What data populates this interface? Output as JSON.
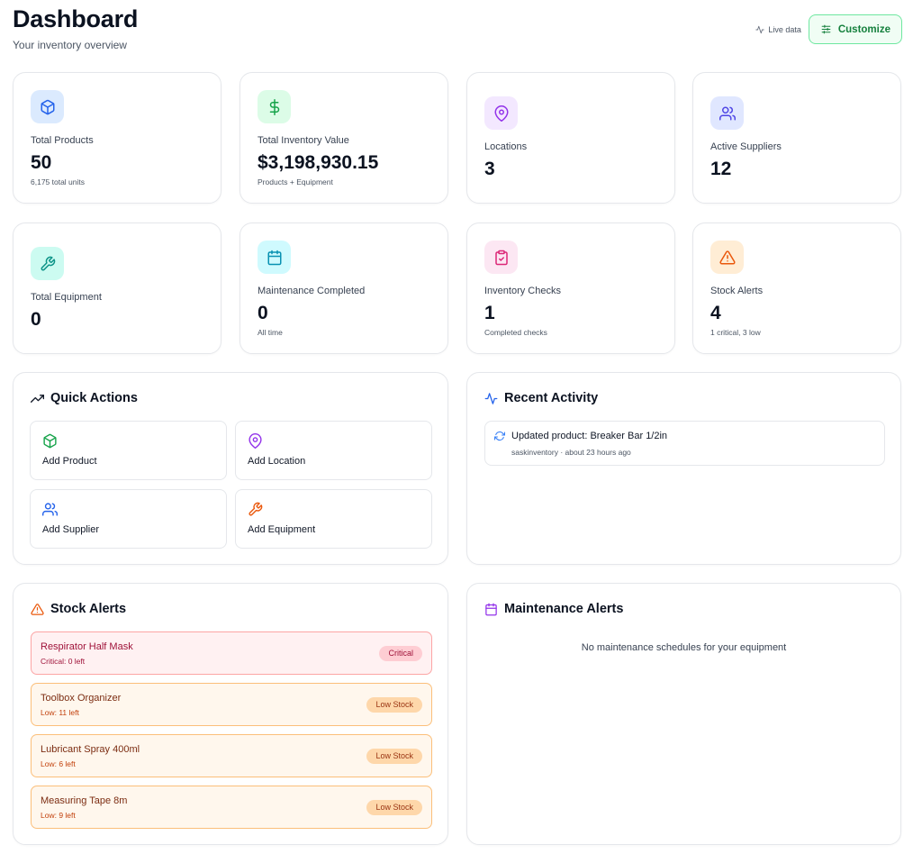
{
  "header": {
    "title": "Dashboard",
    "subtitle": "Your inventory overview",
    "live_label": "Live data",
    "customize_label": "Customize"
  },
  "stats": [
    {
      "label": "Total Products",
      "value": "50",
      "note": "6,175 total units",
      "icon": "package-icon",
      "color": "#2563eb",
      "bg": "#dbeafe"
    },
    {
      "label": "Total Inventory Value",
      "value": "$3,198,930.15",
      "note": "Products + Equipment",
      "icon": "dollar-icon",
      "color": "#16a34a",
      "bg": "#dcfce7"
    },
    {
      "label": "Locations",
      "value": "3",
      "note": "",
      "icon": "map-pin-icon",
      "color": "#9333ea",
      "bg": "#f3e8ff"
    },
    {
      "label": "Active Suppliers",
      "value": "12",
      "note": "",
      "icon": "users-icon",
      "color": "#4f46e5",
      "bg": "#e0e7ff"
    },
    {
      "label": "Total Equipment",
      "value": "0",
      "note": "",
      "icon": "wrench-icon",
      "color": "#0d9488",
      "bg": "#ccfbf1"
    },
    {
      "label": "Maintenance Completed",
      "value": "0",
      "note": "All time",
      "icon": "calendar-icon",
      "color": "#0891b2",
      "bg": "#cffafe"
    },
    {
      "label": "Inventory Checks",
      "value": "1",
      "note": "Completed checks",
      "icon": "clipboard-check-icon",
      "color": "#db2777",
      "bg": "#fce7f3"
    },
    {
      "label": "Stock Alerts",
      "value": "4",
      "note": "1 critical, 3 low",
      "icon": "alert-triangle-icon",
      "color": "#ea580c",
      "bg": "#ffedd5"
    }
  ],
  "quick_actions": {
    "title": "Quick Actions",
    "items": [
      {
        "label": "Add Product",
        "icon": "package-icon",
        "color": "#16a34a"
      },
      {
        "label": "Add Location",
        "icon": "map-pin-icon",
        "color": "#9333ea"
      },
      {
        "label": "Add Supplier",
        "icon": "users-icon",
        "color": "#2563eb"
      },
      {
        "label": "Add Equipment",
        "icon": "wrench-icon",
        "color": "#ea580c"
      }
    ]
  },
  "recent_activity": {
    "title": "Recent Activity",
    "items": [
      {
        "title": "Updated product: Breaker Bar 1/2in",
        "meta": "saskinventory · about 23 hours ago",
        "icon": "refresh-icon"
      }
    ]
  },
  "stock_alerts": {
    "title": "Stock Alerts",
    "items": [
      {
        "name": "Respirator Half Mask",
        "detail": "Critical: 0 left",
        "badge": "Critical",
        "level": "critical"
      },
      {
        "name": "Toolbox Organizer",
        "detail": "Low: 11 left",
        "badge": "Low Stock",
        "level": "low"
      },
      {
        "name": "Lubricant Spray 400ml",
        "detail": "Low: 6 left",
        "badge": "Low Stock",
        "level": "low"
      },
      {
        "name": "Measuring Tape 8m",
        "detail": "Low: 9 left",
        "badge": "Low Stock",
        "level": "low"
      }
    ]
  },
  "maintenance_alerts": {
    "title": "Maintenance Alerts",
    "empty_message": "No maintenance schedules for your equipment"
  }
}
